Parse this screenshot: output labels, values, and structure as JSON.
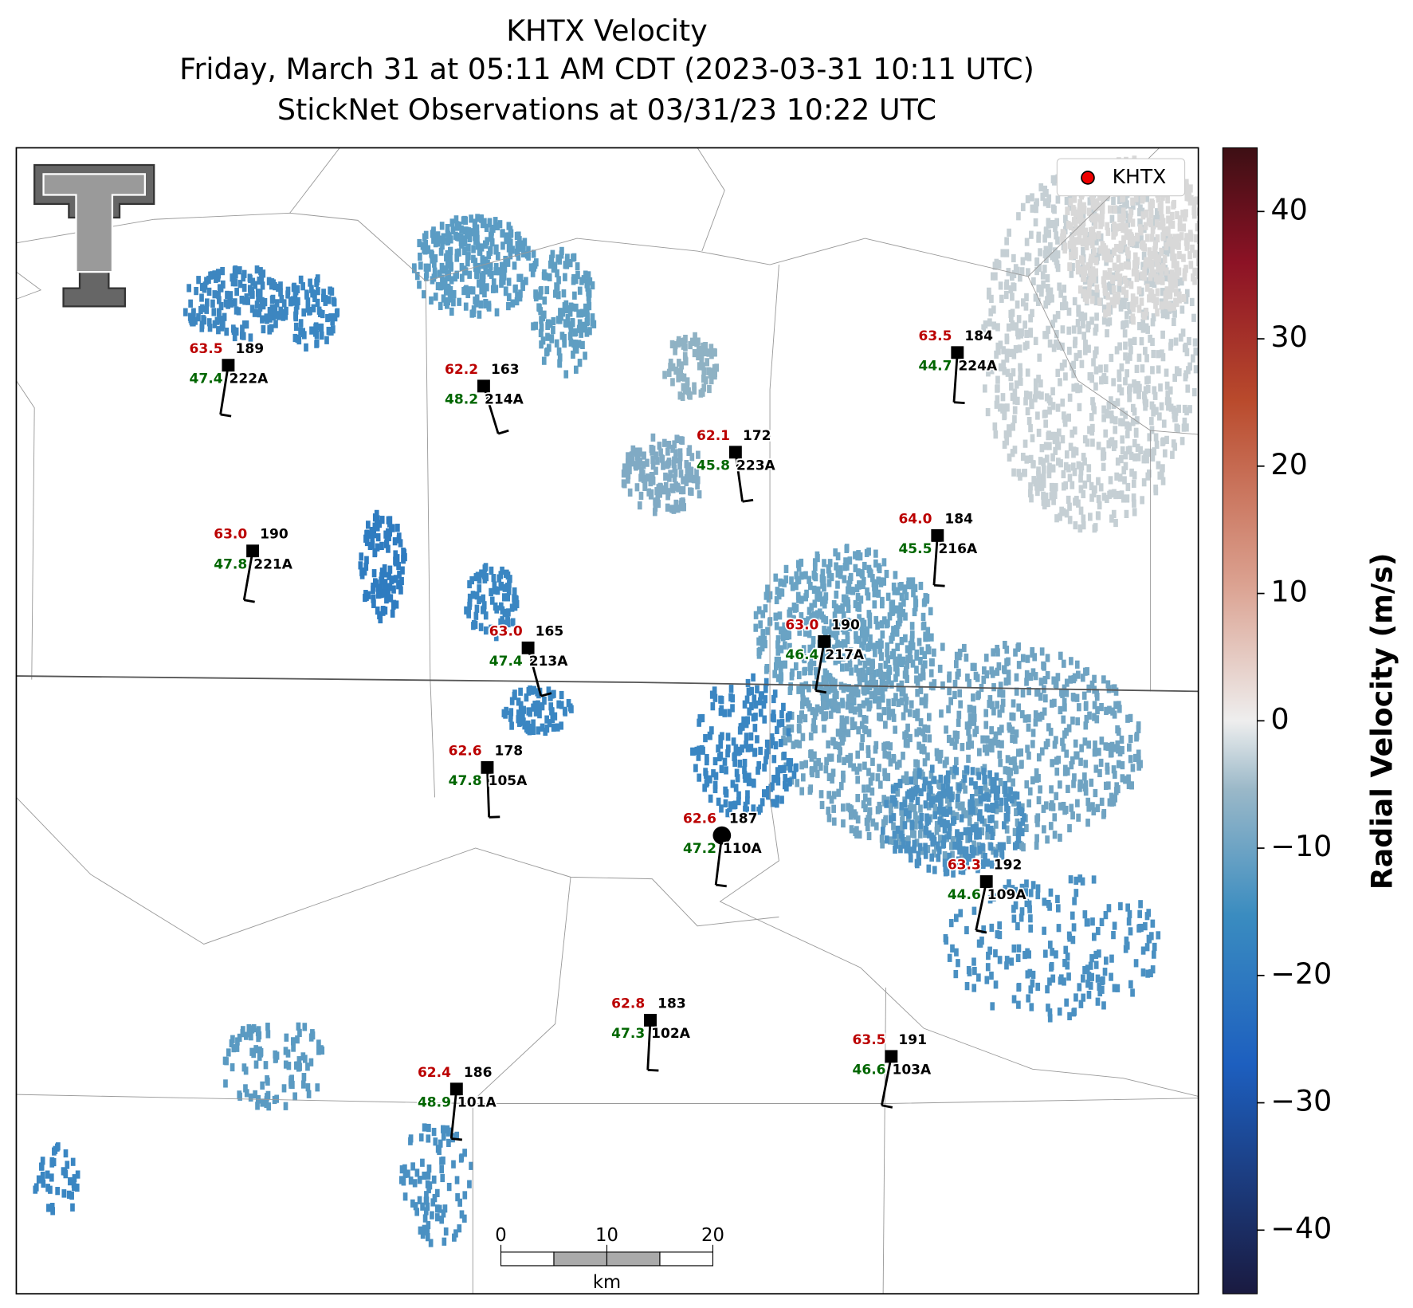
{
  "title": [
    "KHTX Velocity",
    "Friday, March 31 at 05:11 AM CDT (2023-03-31 10:11 UTC)",
    "StickNet Observations at 03/31/23 10:22 UTC"
  ],
  "legend": "KHTX",
  "colorbar": {
    "label": "Radial Velocity (m/s)",
    "lim": [
      -45,
      45
    ],
    "ticks": [
      {
        "value": -40,
        "label": "−40"
      },
      {
        "value": -30,
        "label": "−30"
      },
      {
        "value": -20,
        "label": "−20"
      },
      {
        "value": -10,
        "label": "−10"
      },
      0,
      10,
      20,
      30,
      40
    ]
  },
  "scale_bar": {
    "ticks": [
      0,
      10,
      20
    ],
    "unit": "km"
  },
  "stations": [
    {
      "temp": "63.5",
      "dir": 189,
      "dew": "47.4",
      "id": "222A"
    },
    {
      "temp": "62.2",
      "dir": 163,
      "dew": "48.2",
      "id": "214A"
    },
    {
      "temp": "62.1",
      "dir": 172,
      "dew": "45.8",
      "id": "223A"
    },
    {
      "temp": "63.5",
      "dir": 184,
      "dew": "44.7",
      "id": "224A"
    },
    {
      "temp": "63.0",
      "dir": 190,
      "dew": "47.8",
      "id": "221A"
    },
    {
      "temp": "64.0",
      "dir": 184,
      "dew": "45.5",
      "id": "216A"
    },
    {
      "temp": "63.0",
      "dir": 165,
      "dew": "47.4",
      "id": "213A"
    },
    {
      "temp": "63.0",
      "dir": 190,
      "dew": "46.4",
      "id": "217A"
    },
    {
      "temp": "62.6",
      "dir": 178,
      "dew": "47.8",
      "id": "105A"
    },
    {
      "temp": "62.6",
      "dir": 187,
      "dew": "47.2",
      "id": "110A"
    },
    {
      "temp": "63.3",
      "dir": 192,
      "dew": "44.6",
      "id": "109A"
    },
    {
      "temp": "62.8",
      "dir": 183,
      "dew": "47.3",
      "id": "102A"
    },
    {
      "temp": "63.5",
      "dir": 191,
      "dew": "46.6",
      "id": "103A"
    },
    {
      "temp": "62.4",
      "dir": 186,
      "dew": "48.9",
      "id": "101A"
    }
  ]
}
